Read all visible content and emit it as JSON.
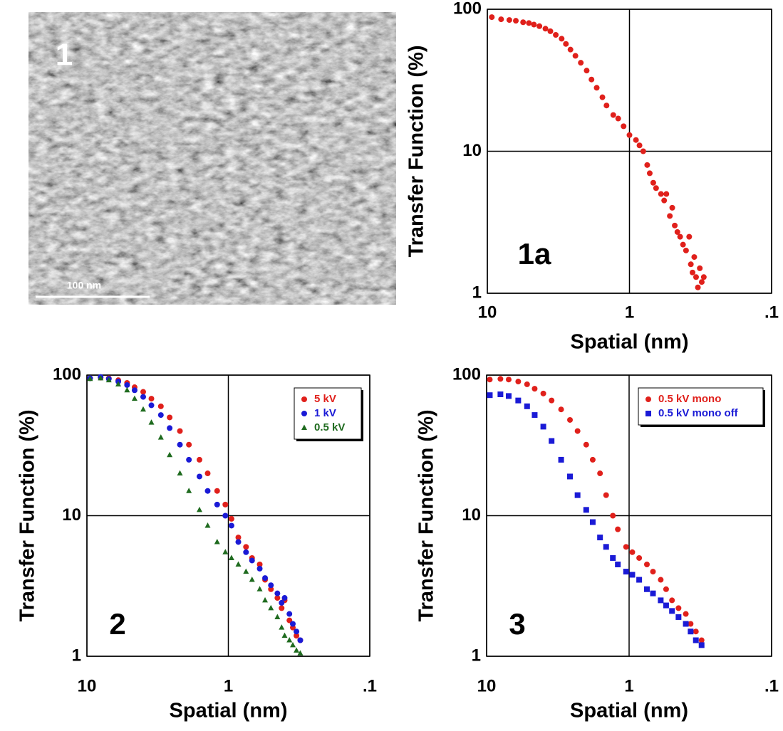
{
  "image": {
    "label": "1",
    "scale_bar": "100 nm"
  },
  "chart_data": [
    {
      "type": "scatter",
      "annotation": "1a",
      "xlabel": "Spatial (nm)",
      "ylabel": "Transfer Function (%)",
      "xscale": "log",
      "yscale": "log",
      "xlim": [
        10,
        0.1
      ],
      "ylim": [
        1,
        100
      ],
      "xticks": [
        10,
        1,
        {
          "value": 0.1,
          "label": ".1"
        }
      ],
      "yticks": [
        1,
        10,
        100
      ],
      "grid": true,
      "series": [
        {
          "color": "#e0201b",
          "marker": "circle",
          "x": [
            9.3,
            8,
            7,
            6.3,
            5.6,
            5.1,
            4.7,
            4.3,
            3.9,
            3.6,
            3.3,
            3.0,
            2.8,
            2.6,
            2.4,
            2.2,
            2.0,
            1.85,
            1.7,
            1.55,
            1.45,
            1.3,
            1.2,
            1.1,
            1.0,
            0.9,
            0.85,
            0.8,
            0.75,
            0.72,
            0.68,
            0.65,
            0.6,
            0.57,
            0.55,
            0.52,
            0.5,
            0.48,
            0.46,
            0.44,
            0.42,
            0.4,
            0.38,
            0.37,
            0.36,
            0.35,
            0.34,
            0.33,
            0.32,
            0.31,
            0.3
          ],
          "values": [
            88,
            85,
            84,
            83,
            81,
            80,
            78,
            76,
            73,
            70,
            66,
            62,
            57,
            52,
            47,
            42,
            37,
            32,
            28,
            24,
            21,
            18,
            17,
            15,
            13,
            12,
            11,
            10,
            8,
            7,
            6,
            5.5,
            5,
            4.5,
            5,
            3.5,
            4,
            3,
            2.7,
            2.5,
            2.2,
            2,
            2.5,
            1.6,
            1.4,
            1.8,
            1.3,
            1.1,
            1.5,
            1.2,
            1.3
          ]
        }
      ]
    },
    {
      "type": "scatter",
      "annotation": "2",
      "xlabel": "Spatial (nm)",
      "ylabel": "Transfer Function (%)",
      "xscale": "log",
      "yscale": "log",
      "xlim": [
        10,
        0.1
      ],
      "ylim": [
        1,
        100
      ],
      "xticks": [
        10,
        1,
        {
          "value": 0.1,
          "label": ".1"
        }
      ],
      "yticks": [
        1,
        10,
        100
      ],
      "grid": true,
      "legend": "upper right",
      "series": [
        {
          "name": "5 kV",
          "color": "#e0201b",
          "marker": "circle",
          "x": [
            9.5,
            8,
            7,
            6,
            5.2,
            4.6,
            4,
            3.5,
            3,
            2.6,
            2.2,
            1.9,
            1.6,
            1.4,
            1.2,
            1.05,
            0.95,
            0.85,
            0.75,
            0.68,
            0.6,
            0.55,
            0.5,
            0.45,
            0.42,
            0.4,
            0.37,
            0.35,
            0.33,
            0.31
          ],
          "values": [
            95,
            96,
            95,
            92,
            88,
            82,
            76,
            68,
            60,
            50,
            40,
            32,
            25,
            20,
            15,
            12,
            9.5,
            7,
            6,
            5,
            4.5,
            3.5,
            3,
            2.6,
            2.2,
            2.5,
            1.8,
            1.6,
            1.4,
            1.3
          ]
        },
        {
          "name": "1 kV",
          "color": "#1a1ad6",
          "marker": "circle",
          "x": [
            9.5,
            8,
            7,
            6,
            5.2,
            4.6,
            4,
            3.5,
            3,
            2.6,
            2.2,
            1.9,
            1.6,
            1.4,
            1.2,
            1.05,
            0.95,
            0.85,
            0.75,
            0.68,
            0.6,
            0.55,
            0.5,
            0.45,
            0.42,
            0.4,
            0.37,
            0.35,
            0.33,
            0.31
          ],
          "values": [
            95,
            97,
            94,
            90,
            85,
            78,
            70,
            61,
            52,
            42,
            32,
            25,
            19,
            15,
            12,
            10,
            8.5,
            6.5,
            5.5,
            4.8,
            4.2,
            3.6,
            3.2,
            2.8,
            2.4,
            2.6,
            2,
            1.7,
            1.5,
            1.3
          ]
        },
        {
          "name": "0.5 kV",
          "color": "#1f6b1f",
          "marker": "triangle",
          "x": [
            9.5,
            8,
            7,
            6,
            5.2,
            4.6,
            4,
            3.5,
            3,
            2.6,
            2.2,
            1.9,
            1.6,
            1.4,
            1.2,
            1.05,
            0.95,
            0.85,
            0.75,
            0.68,
            0.6,
            0.55,
            0.5,
            0.45,
            0.42,
            0.4,
            0.37,
            0.35,
            0.33,
            0.31
          ],
          "values": [
            94,
            95,
            92,
            86,
            78,
            68,
            57,
            46,
            36,
            27,
            20,
            15,
            11,
            8.5,
            6.5,
            5.5,
            5,
            4.5,
            4,
            3.5,
            3,
            2.5,
            2.2,
            1.9,
            1.6,
            1.4,
            1.3,
            1.2,
            1.1,
            1.05
          ]
        }
      ]
    },
    {
      "type": "scatter",
      "annotation": "3",
      "xlabel": "Spatial (nm)",
      "ylabel": "Transfer Function (%)",
      "xscale": "log",
      "yscale": "log",
      "xlim": [
        10,
        0.1
      ],
      "ylim": [
        1,
        100
      ],
      "xticks": [
        10,
        1,
        {
          "value": 0.1,
          "label": ".1"
        }
      ],
      "yticks": [
        1,
        10,
        100
      ],
      "grid": true,
      "legend": "upper right",
      "series": [
        {
          "name": "0.5 kV mono",
          "color": "#e0201b",
          "marker": "circle",
          "x": [
            9.5,
            8,
            7,
            6,
            5.2,
            4.6,
            4,
            3.5,
            3,
            2.6,
            2.3,
            2,
            1.8,
            1.6,
            1.45,
            1.3,
            1.2,
            1.05,
            0.95,
            0.85,
            0.75,
            0.68,
            0.6,
            0.55,
            0.5,
            0.45,
            0.4,
            0.37,
            0.34,
            0.31
          ],
          "values": [
            93,
            94,
            93,
            90,
            86,
            80,
            74,
            66,
            57,
            48,
            40,
            32,
            25,
            20,
            14,
            10,
            8,
            6,
            5.5,
            5,
            4.5,
            4,
            3.5,
            3,
            2.5,
            2.2,
            2,
            1.7,
            1.5,
            1.3
          ]
        },
        {
          "name": "0.5 kV mono off",
          "color": "#1a1ad6",
          "marker": "square",
          "x": [
            9.5,
            8,
            7,
            6,
            5.2,
            4.6,
            4,
            3.5,
            3,
            2.6,
            2.3,
            2,
            1.8,
            1.6,
            1.45,
            1.3,
            1.2,
            1.05,
            0.95,
            0.85,
            0.75,
            0.68,
            0.6,
            0.55,
            0.5,
            0.45,
            0.4,
            0.37,
            0.34,
            0.31
          ],
          "values": [
            72,
            73,
            71,
            66,
            60,
            52,
            43,
            34,
            25,
            19,
            14,
            11,
            9,
            7,
            6,
            5,
            4.5,
            4,
            3.8,
            3.5,
            3,
            2.8,
            2.5,
            2.3,
            2.1,
            1.9,
            1.7,
            1.5,
            1.3,
            1.2
          ]
        }
      ]
    }
  ]
}
